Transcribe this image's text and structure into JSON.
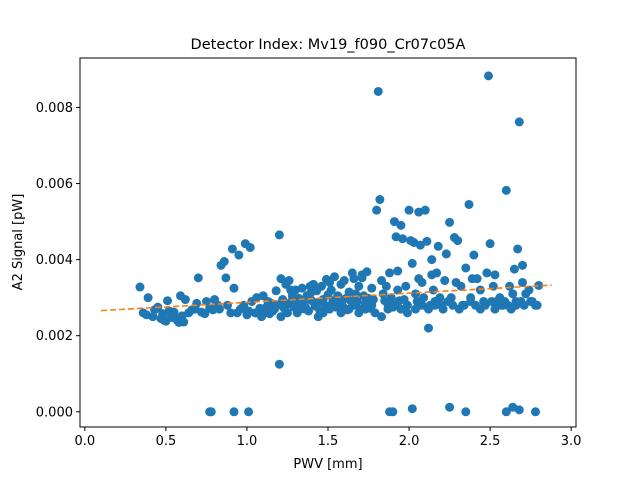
{
  "chart_data": {
    "type": "scatter",
    "title": "Detector Index: Mv19_f090_Cr07c05A",
    "xlabel": "PWV [mm]",
    "ylabel": "A2 Signal [pW]",
    "xlim": [
      -0.03,
      3.03
    ],
    "ylim": [
      -0.0004,
      0.0093
    ],
    "xticks": [
      0.0,
      0.5,
      1.0,
      1.5,
      2.0,
      2.5,
      3.0
    ],
    "xtick_labels": [
      "0.0",
      "0.5",
      "1.0",
      "1.5",
      "2.0",
      "2.5",
      "3.0"
    ],
    "yticks": [
      0.0,
      0.002,
      0.004,
      0.006,
      0.008
    ],
    "ytick_labels": [
      "0.000",
      "0.002",
      "0.004",
      "0.006",
      "0.008"
    ],
    "colors": {
      "points": "#1f77b4",
      "fit": "#ff7f0e"
    },
    "series": [
      {
        "name": "measurements",
        "kind": "scatter",
        "points": [
          [
            0.34,
            0.00328
          ],
          [
            0.36,
            0.0026
          ],
          [
            0.38,
            0.00255
          ],
          [
            0.39,
            0.003
          ],
          [
            0.42,
            0.0025
          ],
          [
            0.43,
            0.00268
          ],
          [
            0.45,
            0.00275
          ],
          [
            0.47,
            0.00245
          ],
          [
            0.48,
            0.00258
          ],
          [
            0.49,
            0.0024
          ],
          [
            0.5,
            0.00238
          ],
          [
            0.51,
            0.00292
          ],
          [
            0.52,
            0.00265
          ],
          [
            0.53,
            0.00248
          ],
          [
            0.55,
            0.00262
          ],
          [
            0.56,
            0.00245
          ],
          [
            0.57,
            0.0024
          ],
          [
            0.58,
            0.00235
          ],
          [
            0.59,
            0.00305
          ],
          [
            0.6,
            0.00252
          ],
          [
            0.61,
            0.00236
          ],
          [
            0.62,
            0.00295
          ],
          [
            0.64,
            0.0026
          ],
          [
            0.66,
            0.00268
          ],
          [
            0.68,
            0.0027
          ],
          [
            0.69,
            0.00285
          ],
          [
            0.7,
            0.00352
          ],
          [
            0.72,
            0.00262
          ],
          [
            0.74,
            0.00258
          ],
          [
            0.75,
            0.0029
          ],
          [
            0.77,
            0.00272
          ],
          [
            0.79,
            0.00268
          ],
          [
            0.8,
            0.00295
          ],
          [
            0.82,
            0.0028
          ],
          [
            0.83,
            0.0027
          ],
          [
            0.84,
            0.00385
          ],
          [
            0.86,
            0.00395
          ],
          [
            0.87,
            0.00352
          ],
          [
            0.88,
            0.0028
          ],
          [
            0.9,
            0.0026
          ],
          [
            0.91,
            0.00428
          ],
          [
            0.92,
            0.00325
          ],
          [
            0.94,
            0.0026
          ],
          [
            0.95,
            0.00412
          ],
          [
            0.96,
            0.0027
          ],
          [
            0.98,
            0.0028
          ],
          [
            0.99,
            0.00442
          ],
          [
            1.0,
            0.00255
          ],
          [
            1.01,
            0.00265
          ],
          [
            1.02,
            0.00432
          ],
          [
            1.03,
            0.0029
          ],
          [
            1.05,
            0.0026
          ],
          [
            1.06,
            0.003
          ],
          [
            1.08,
            0.00272
          ],
          [
            1.09,
            0.0025
          ],
          [
            1.1,
            0.00305
          ],
          [
            1.11,
            0.0026
          ],
          [
            1.12,
            0.00275
          ],
          [
            1.14,
            0.00258
          ],
          [
            1.15,
            0.00285
          ],
          [
            1.16,
            0.00265
          ],
          [
            1.17,
            0.0027
          ],
          [
            1.18,
            0.00318
          ],
          [
            1.19,
            0.0028
          ],
          [
            1.2,
            0.00465
          ],
          [
            1.21,
            0.0035
          ],
          [
            1.22,
            0.00295
          ],
          [
            1.23,
            0.00272
          ],
          [
            1.24,
            0.00335
          ],
          [
            1.25,
            0.0026
          ],
          [
            1.26,
            0.00345
          ],
          [
            1.27,
            0.00288
          ],
          [
            1.28,
            0.00305
          ],
          [
            1.29,
            0.00275
          ],
          [
            1.3,
            0.0032
          ],
          [
            1.31,
            0.00285
          ],
          [
            1.32,
            0.00298
          ],
          [
            1.33,
            0.0027
          ],
          [
            1.34,
            0.00325
          ],
          [
            1.35,
            0.00285
          ],
          [
            1.36,
            0.00275
          ],
          [
            1.37,
            0.00305
          ],
          [
            1.38,
            0.00265
          ],
          [
            1.39,
            0.0031
          ],
          [
            1.4,
            0.00292
          ],
          [
            1.41,
            0.00335
          ],
          [
            1.42,
            0.00278
          ],
          [
            1.43,
            0.00318
          ],
          [
            1.44,
            0.00288
          ],
          [
            1.45,
            0.00265
          ],
          [
            1.46,
            0.0033
          ],
          [
            1.47,
            0.00295
          ],
          [
            1.48,
            0.0028
          ],
          [
            1.49,
            0.00348
          ],
          [
            1.5,
            0.00308
          ],
          [
            1.51,
            0.0027
          ],
          [
            1.52,
            0.0032
          ],
          [
            1.53,
            0.00292
          ],
          [
            1.54,
            0.00355
          ],
          [
            1.55,
            0.00275
          ],
          [
            1.56,
            0.00305
          ],
          [
            1.57,
            0.0029
          ],
          [
            1.58,
            0.00335
          ],
          [
            1.59,
            0.00278
          ],
          [
            1.6,
            0.00345
          ],
          [
            1.61,
            0.00298
          ],
          [
            1.62,
            0.00268
          ],
          [
            1.63,
            0.00315
          ],
          [
            1.64,
            0.00292
          ],
          [
            1.65,
            0.00365
          ],
          [
            1.66,
            0.0028
          ],
          [
            1.67,
            0.0031
          ],
          [
            1.68,
            0.0029
          ],
          [
            1.69,
            0.0033
          ],
          [
            1.7,
            0.0027
          ],
          [
            1.71,
            0.00352
          ],
          [
            1.72,
            0.00305
          ],
          [
            1.73,
            0.00285
          ],
          [
            1.74,
            0.00368
          ],
          [
            1.75,
            0.00298
          ],
          [
            1.76,
            0.00272
          ],
          [
            1.77,
            0.00325
          ],
          [
            1.78,
            0.00295
          ],
          [
            1.79,
            0.0026
          ],
          [
            1.8,
            0.0053
          ],
          [
            1.81,
            0.00842
          ],
          [
            1.82,
            0.00558
          ],
          [
            1.83,
            0.00345
          ],
          [
            1.84,
            0.0031
          ],
          [
            1.85,
            0.00292
          ],
          [
            1.86,
            0.0033
          ],
          [
            1.87,
            0.00282
          ],
          [
            1.88,
            0.00365
          ],
          [
            1.89,
            0.003
          ],
          [
            1.9,
            0.00275
          ],
          [
            1.91,
            0.005
          ],
          [
            1.92,
            0.0046
          ],
          [
            1.93,
            0.0032
          ],
          [
            1.94,
            0.00292
          ],
          [
            1.95,
            0.0049
          ],
          [
            1.96,
            0.00455
          ],
          [
            1.97,
            0.00295
          ],
          [
            1.98,
            0.0033
          ],
          [
            1.99,
            0.0028
          ],
          [
            2.0,
            0.0053
          ],
          [
            2.01,
            0.0045
          ],
          [
            2.02,
            0.0039
          ],
          [
            2.03,
            0.00445
          ],
          [
            2.04,
            0.0031
          ],
          [
            2.05,
            0.0029
          ],
          [
            2.06,
            0.00525
          ],
          [
            2.07,
            0.00438
          ],
          [
            2.08,
            0.0034
          ],
          [
            2.09,
            0.003
          ],
          [
            2.1,
            0.0053
          ],
          [
            2.11,
            0.00448
          ],
          [
            2.12,
            0.0022
          ],
          [
            2.13,
            0.0028
          ],
          [
            2.14,
            0.004
          ],
          [
            2.15,
            0.0032
          ],
          [
            2.16,
            0.0029
          ],
          [
            2.17,
            0.00365
          ],
          [
            2.18,
            0.00435
          ],
          [
            2.19,
            0.003
          ],
          [
            2.2,
            0.0028
          ],
          [
            2.22,
            0.00345
          ],
          [
            2.23,
            0.00415
          ],
          [
            2.25,
            0.00498
          ],
          [
            2.26,
            0.003
          ],
          [
            2.28,
            0.00458
          ],
          [
            2.3,
            0.0045
          ],
          [
            2.32,
            0.0033
          ],
          [
            2.33,
            0.0028
          ],
          [
            2.35,
            0.00378
          ],
          [
            2.37,
            0.00545
          ],
          [
            2.38,
            0.003
          ],
          [
            2.4,
            0.00412
          ],
          [
            2.42,
            0.0035
          ],
          [
            2.44,
            0.0032
          ],
          [
            2.46,
            0.0029
          ],
          [
            2.48,
            0.00365
          ],
          [
            2.49,
            0.00883
          ],
          [
            2.5,
            0.00442
          ],
          [
            2.52,
            0.0033
          ],
          [
            2.54,
            0.0029
          ],
          [
            2.56,
            0.003
          ],
          [
            2.58,
            0.0028
          ],
          [
            2.6,
            0.00582
          ],
          [
            2.62,
            0.0033
          ],
          [
            2.64,
            0.0031
          ],
          [
            2.65,
            0.00375
          ],
          [
            2.66,
            0.0029
          ],
          [
            2.67,
            0.00428
          ],
          [
            2.68,
            0.00762
          ],
          [
            2.7,
            0.00385
          ],
          [
            2.72,
            0.0031
          ],
          [
            2.74,
            0.0032
          ],
          [
            2.76,
            0.0029
          ],
          [
            2.78,
            0.0028
          ],
          [
            2.8,
            0.00332
          ],
          [
            0.77,
            0.0
          ],
          [
            0.78,
            0.0
          ],
          [
            0.92,
            0.0
          ],
          [
            1.01,
            0.0
          ],
          [
            1.2,
            0.00125
          ],
          [
            1.88,
            0.0
          ],
          [
            1.9,
            0.0
          ],
          [
            2.02,
            8e-05
          ],
          [
            2.25,
            0.00012
          ],
          [
            2.35,
            0.0
          ],
          [
            2.6,
            0.0
          ],
          [
            2.64,
            0.00012
          ],
          [
            2.68,
            5e-05
          ],
          [
            2.78,
            0.0
          ],
          [
            1.06,
            0.0026
          ],
          [
            1.13,
            0.0029
          ],
          [
            1.21,
            0.0025
          ],
          [
            1.24,
            0.0028
          ],
          [
            1.31,
            0.0026
          ],
          [
            1.36,
            0.0027
          ],
          [
            1.44,
            0.0025
          ],
          [
            1.47,
            0.0026
          ],
          [
            1.52,
            0.0028
          ],
          [
            1.58,
            0.0026
          ],
          [
            1.63,
            0.0027
          ],
          [
            1.69,
            0.0026
          ],
          [
            1.73,
            0.0027
          ],
          [
            1.77,
            0.0028
          ],
          [
            1.83,
            0.0025
          ],
          [
            1.87,
            0.0027
          ],
          [
            1.91,
            0.0028
          ],
          [
            1.95,
            0.0027
          ],
          [
            1.99,
            0.0026
          ],
          [
            2.04,
            0.0027
          ],
          [
            2.08,
            0.0028
          ],
          [
            2.12,
            0.0027
          ],
          [
            2.16,
            0.0028
          ],
          [
            2.21,
            0.0027
          ],
          [
            2.24,
            0.0029
          ],
          [
            2.27,
            0.0028
          ],
          [
            2.31,
            0.0027
          ],
          [
            2.34,
            0.0028
          ],
          [
            2.38,
            0.0029
          ],
          [
            2.41,
            0.0028
          ],
          [
            2.44,
            0.0027
          ],
          [
            2.47,
            0.0028
          ],
          [
            2.51,
            0.0029
          ],
          [
            2.53,
            0.0027
          ],
          [
            2.57,
            0.0028
          ],
          [
            2.59,
            0.0029
          ],
          [
            2.61,
            0.0028
          ],
          [
            2.63,
            0.0027
          ],
          [
            2.66,
            0.0028
          ],
          [
            2.69,
            0.0029
          ],
          [
            2.71,
            0.0028
          ],
          [
            2.75,
            0.0029
          ],
          [
            2.79,
            0.0028
          ],
          [
            1.27,
            0.0032
          ],
          [
            1.39,
            0.0033
          ],
          [
            1.51,
            0.0034
          ],
          [
            1.66,
            0.0035
          ],
          [
            1.71,
            0.0036
          ],
          [
            1.93,
            0.0037
          ],
          [
            2.06,
            0.0035
          ],
          [
            2.14,
            0.0036
          ],
          [
            2.29,
            0.0034
          ],
          [
            2.39,
            0.0035
          ],
          [
            2.53,
            0.0036
          ],
          [
            2.7,
            0.0034
          ]
        ]
      },
      {
        "name": "fit",
        "kind": "line",
        "style": "dashed",
        "points": [
          [
            0.1,
            0.00266
          ],
          [
            2.88,
            0.00333
          ]
        ]
      }
    ]
  }
}
